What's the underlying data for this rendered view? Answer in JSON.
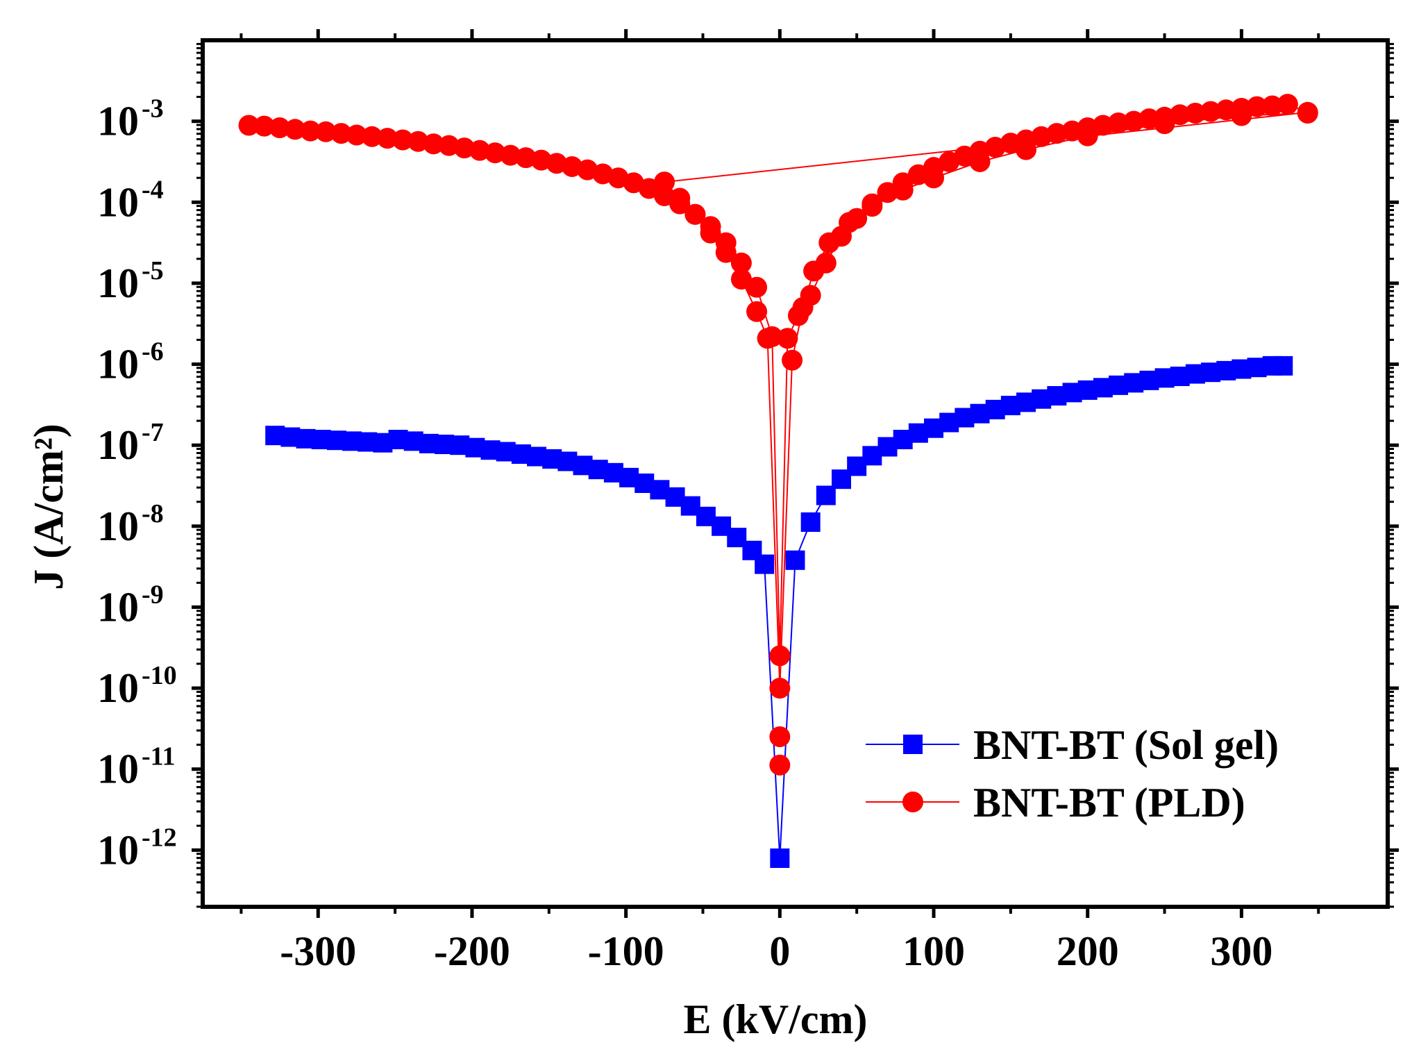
{
  "chart_data": {
    "type": "scatter",
    "xlabel": "E (kV/cm)",
    "ylabel": "J (A/cm²)",
    "yscale": "log",
    "xlim": [
      -375,
      395
    ],
    "ylim_exp": [
      -12.7,
      -2.0
    ],
    "x_ticks": [
      -300,
      -200,
      -100,
      0,
      100,
      200,
      300
    ],
    "x_tick_labels": [
      "-300",
      "-200",
      "-100",
      "0",
      "100",
      "200",
      "300"
    ],
    "y_ticks": [
      {
        "base": "10",
        "exp": "-12",
        "value_exp": -12
      },
      {
        "base": "10",
        "exp": "-11",
        "value_exp": -11
      },
      {
        "base": "10",
        "exp": "-10",
        "value_exp": -10
      },
      {
        "base": "10",
        "exp": "-9",
        "value_exp": -9
      },
      {
        "base": "10",
        "exp": "-8",
        "value_exp": -8
      },
      {
        "base": "10",
        "exp": "-7",
        "value_exp": -7
      },
      {
        "base": "10",
        "exp": "-6",
        "value_exp": -6
      },
      {
        "base": "10",
        "exp": "-5",
        "value_exp": -5
      },
      {
        "base": "10",
        "exp": "-4",
        "value_exp": -4
      },
      {
        "base": "10",
        "exp": "-3",
        "value_exp": -3
      }
    ],
    "legend_position": "bottom-right",
    "series": [
      {
        "name": "BNT-BT (Sol gel)",
        "color": "#0000ff",
        "marker": "square",
        "x": [
          -328,
          -318,
          -308,
          -298,
          -288,
          -278,
          -268,
          -258,
          -248,
          -238,
          -228,
          -218,
          -208,
          -198,
          -188,
          -178,
          -168,
          -158,
          -148,
          -138,
          -128,
          -118,
          -108,
          -98,
          -88,
          -78,
          -68,
          -58,
          -48,
          -38,
          -28,
          -18,
          -10,
          0,
          10,
          20,
          30,
          40,
          50,
          60,
          70,
          80,
          90,
          100,
          110,
          120,
          130,
          140,
          150,
          160,
          170,
          180,
          190,
          200,
          210,
          220,
          230,
          240,
          250,
          260,
          270,
          280,
          290,
          300,
          310,
          320,
          327
        ],
        "y_exp": [
          -6.88,
          -6.9,
          -6.92,
          -6.93,
          -6.94,
          -6.95,
          -6.96,
          -6.97,
          -6.93,
          -6.95,
          -6.98,
          -6.99,
          -7.0,
          -7.03,
          -7.06,
          -7.08,
          -7.11,
          -7.14,
          -7.17,
          -7.2,
          -7.25,
          -7.3,
          -7.34,
          -7.4,
          -7.47,
          -7.55,
          -7.64,
          -7.75,
          -7.88,
          -8.0,
          -8.14,
          -8.3,
          -8.47,
          -12.1,
          -8.42,
          -7.95,
          -7.62,
          -7.42,
          -7.26,
          -7.13,
          -7.02,
          -6.93,
          -6.85,
          -6.79,
          -6.72,
          -6.66,
          -6.61,
          -6.56,
          -6.51,
          -6.47,
          -6.43,
          -6.39,
          -6.35,
          -6.32,
          -6.29,
          -6.26,
          -6.23,
          -6.2,
          -6.17,
          -6.15,
          -6.12,
          -6.1,
          -6.08,
          -6.06,
          -6.04,
          -6.02,
          -6.02
        ]
      },
      {
        "name": "BNT-BT (PLD)",
        "color": "#ff0000",
        "marker": "circle",
        "x": [
          -345,
          -335,
          -325,
          -315,
          -305,
          -295,
          -285,
          -275,
          -265,
          -255,
          -245,
          -235,
          -225,
          -215,
          -205,
          -195,
          -185,
          -175,
          -165,
          -155,
          -145,
          -135,
          -125,
          -115,
          -105,
          -95,
          -85,
          -75,
          -65,
          -55,
          -45,
          -35,
          -25,
          -15,
          -5,
          0,
          5,
          12,
          20,
          30,
          40,
          50,
          60,
          70,
          80,
          90,
          100,
          110,
          120,
          130,
          140,
          150,
          160,
          170,
          180,
          190,
          200,
          210,
          220,
          230,
          240,
          250,
          260,
          270,
          280,
          290,
          300,
          310,
          320,
          330,
          343,
          -75,
          -65,
          -55,
          -45,
          -35,
          -25,
          -15,
          -8,
          0,
          8,
          15,
          22,
          32,
          45,
          60,
          80,
          100,
          130,
          160,
          200,
          250,
          300,
          343
        ],
        "y_exp": [
          -3.05,
          -3.06,
          -3.08,
          -3.1,
          -3.12,
          -3.13,
          -3.15,
          -3.17,
          -3.19,
          -3.21,
          -3.23,
          -3.25,
          -3.28,
          -3.3,
          -3.33,
          -3.36,
          -3.39,
          -3.42,
          -3.45,
          -3.48,
          -3.52,
          -3.56,
          -3.6,
          -3.65,
          -3.7,
          -3.76,
          -3.83,
          -3.92,
          -4.02,
          -4.15,
          -4.3,
          -4.5,
          -4.75,
          -5.05,
          -5.66,
          -9.6,
          -5.68,
          -5.4,
          -5.15,
          -4.75,
          -4.42,
          -4.2,
          -4.02,
          -3.88,
          -3.76,
          -3.66,
          -3.57,
          -3.5,
          -3.43,
          -3.37,
          -3.32,
          -3.27,
          -3.23,
          -3.19,
          -3.15,
          -3.12,
          -3.08,
          -3.05,
          -3.02,
          -3.0,
          -2.97,
          -2.95,
          -2.92,
          -2.9,
          -2.88,
          -2.86,
          -2.84,
          -2.82,
          -2.81,
          -2.79,
          -2.89,
          -3.75,
          -3.95,
          -4.15,
          -4.38,
          -4.62,
          -4.95,
          -5.35,
          -5.68,
          -10.0,
          -5.95,
          -5.3,
          -4.85,
          -4.5,
          -4.25,
          -4.05,
          -3.85,
          -3.7,
          -3.5,
          -3.35,
          -3.18,
          -3.03,
          -2.93,
          -2.9
        ],
        "y_extra_exp": [
          -10.6,
          -10.95
        ]
      }
    ]
  }
}
